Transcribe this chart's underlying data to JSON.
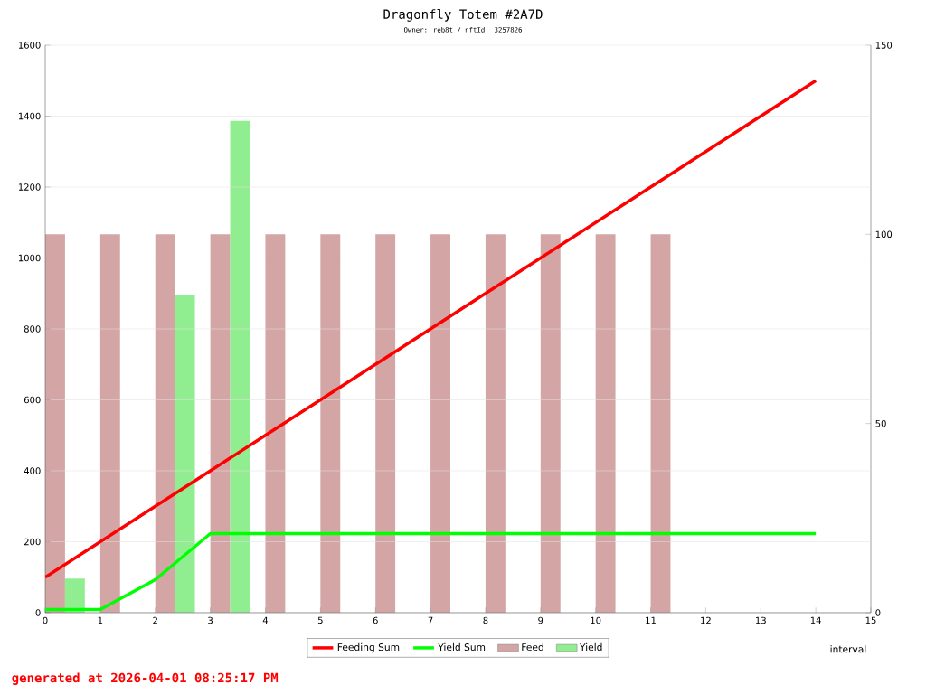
{
  "chart_data": {
    "type": "bar",
    "title": "Dragonfly Totem #2A7D",
    "subtitle": "Owner: reb8t / nftId: 3257826",
    "xlabel": "interval",
    "annotations": [
      "generated at 2026-04-01 08:25:17 PM"
    ],
    "series": [
      {
        "name": "Feeding Sum",
        "type": "line",
        "axis": "y",
        "color": "#ff0000",
        "x": [
          0,
          1,
          2,
          3,
          4,
          5,
          6,
          7,
          8,
          9,
          10,
          11,
          12,
          13,
          14
        ],
        "values": [
          100,
          200,
          300,
          400,
          500,
          600,
          700,
          800,
          900,
          1000,
          1100,
          1200,
          1300,
          1400,
          1500
        ]
      },
      {
        "name": "Yield Sum",
        "type": "line",
        "axis": "y",
        "color": "#00ff00",
        "x": [
          0,
          1,
          2,
          3,
          4,
          5,
          6,
          7,
          8,
          9,
          10,
          11,
          12,
          13,
          14
        ],
        "values": [
          9,
          9,
          93,
          223,
          223,
          223,
          223,
          223,
          223,
          223,
          223,
          223,
          223,
          223,
          223
        ]
      },
      {
        "name": "Feed",
        "axis": "y2",
        "color": "#d4a5a5",
        "x": [
          0.18,
          1.18,
          2.18,
          3.18,
          4.18,
          5.18,
          6.18,
          7.18,
          8.18,
          9.18,
          10.18,
          11.18
        ],
        "values": [
          100,
          100,
          100,
          100,
          100,
          100,
          100,
          100,
          100,
          100,
          100,
          100
        ]
      },
      {
        "name": "Yield",
        "axis": "y2",
        "color": "#90ee90",
        "x": [
          0.54,
          2.54,
          3.54
        ],
        "values": [
          9,
          84,
          130
        ]
      }
    ],
    "xlim": [
      0,
      15
    ],
    "xticks": [
      0,
      1,
      2,
      3,
      4,
      5,
      6,
      7,
      8,
      9,
      10,
      11,
      12,
      13,
      14,
      15
    ],
    "ylim": [
      0,
      1600
    ],
    "yticks": [
      0,
      200,
      400,
      600,
      800,
      1000,
      1200,
      1400,
      1600
    ],
    "y2lim": [
      0,
      150
    ],
    "y2ticks": [
      0,
      50,
      100,
      150
    ],
    "grid": "y",
    "legend": "bottom",
    "line_style": "solid"
  }
}
